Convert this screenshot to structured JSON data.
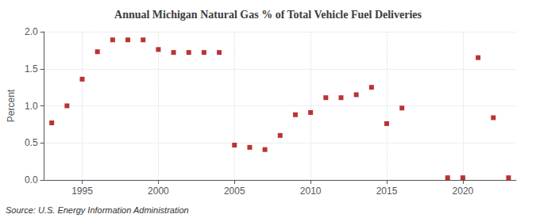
{
  "chart_data": {
    "type": "scatter",
    "title": "Annual Michigan Natural Gas % of Total Vehicle Fuel Deliveries",
    "ylabel": "Percent",
    "source": "Source: U.S. Energy Information Administration",
    "color": "#aa0000",
    "marker": "square",
    "grid": true,
    "xlim": [
      1992.5,
      2023.5
    ],
    "xticks": [
      1995,
      2000,
      2005,
      2010,
      2015,
      2020
    ],
    "ylim": [
      0.0,
      2.0
    ],
    "yticks": [
      {
        "value": 0,
        "label": "0.0"
      },
      0.5,
      {
        "value": 1,
        "label": "1.0"
      },
      1.5,
      {
        "value": 2,
        "label": "2.0"
      }
    ],
    "x": [
      1993,
      1994,
      1995,
      1996,
      1997,
      1998,
      1999,
      2000,
      2001,
      2002,
      2003,
      2004,
      2005,
      2006,
      2007,
      2008,
      2009,
      2010,
      2011,
      2012,
      2013,
      2014,
      2015,
      2016,
      2019,
      2020,
      2021,
      2022,
      2023
    ],
    "values": [
      0.77,
      1.0,
      1.36,
      1.73,
      1.89,
      1.89,
      1.89,
      1.76,
      1.72,
      1.72,
      1.72,
      1.72,
      0.47,
      0.44,
      0.41,
      0.6,
      0.88,
      0.91,
      1.11,
      1.11,
      1.15,
      1.25,
      0.76,
      0.97,
      0.03,
      0.03,
      1.65,
      0.84,
      0.03
    ]
  }
}
